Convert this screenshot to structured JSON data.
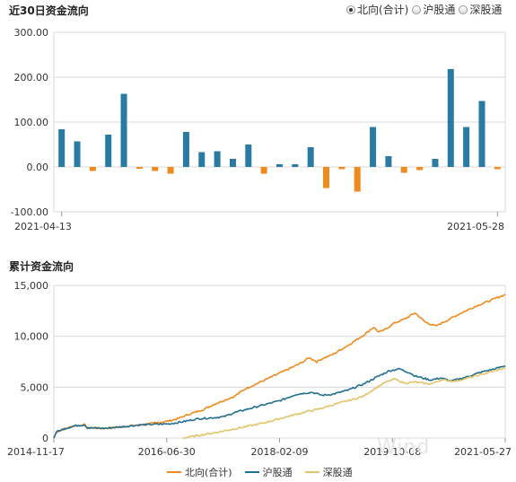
{
  "header": {
    "title1": "近30日资金流向",
    "title2": "累计资金流向",
    "radios": [
      {
        "label": "北向(合计)",
        "checked": true
      },
      {
        "label": "沪股通",
        "checked": false
      },
      {
        "label": "深股通",
        "checked": false
      }
    ]
  },
  "watermark": "Wind",
  "colors": {
    "positive": "#2a7ba1",
    "negative": "#ee8a1e",
    "north": "#ee8a1e",
    "sh": "#21708f",
    "sz": "#e3c46a",
    "grid": "#d9d9d9"
  },
  "chart_data": [
    {
      "type": "bar",
      "title": "近30日资金流向",
      "x_start_label": "2021-04-13",
      "x_end_label": "2021-05-28",
      "ylim": [
        -100,
        300
      ],
      "yticks": [
        "300.00",
        "200.00",
        "100.00",
        "0.00",
        "-100.00"
      ],
      "ytick_values": [
        300,
        200,
        100,
        0,
        -100
      ],
      "values": [
        84,
        57,
        -9,
        72,
        163,
        -4,
        -9,
        -15,
        78,
        33,
        35,
        18,
        50,
        -15,
        6,
        6,
        44,
        -47,
        -5,
        -55,
        89,
        24,
        -13,
        -7,
        18,
        218,
        89,
        147,
        -5
      ]
    },
    {
      "type": "line",
      "title": "累计资金流向",
      "ylim": [
        0,
        15000
      ],
      "yticks": [
        "15,000",
        "10,000",
        "5,000",
        "0"
      ],
      "ytick_values": [
        15000,
        10000,
        5000,
        0
      ],
      "xticks": [
        "2014-11-17",
        "2016-06-30",
        "2018-02-09",
        "2019-10-08",
        "2021-05-27"
      ],
      "legend": [
        "北向(合计)",
        "沪股通",
        "深股通"
      ],
      "series": [
        {
          "name": "北向(合计)",
          "key": "north",
          "points": [
            [
              0,
              0
            ],
            [
              1,
              600
            ],
            [
              4,
              900
            ],
            [
              8,
              1200
            ],
            [
              12,
              1300
            ],
            [
              13,
              1000
            ],
            [
              20,
              950
            ],
            [
              28,
              1150
            ],
            [
              34,
              1300
            ],
            [
              40,
              1500
            ],
            [
              45,
              1700
            ],
            [
              48,
              1900
            ],
            [
              52,
              2300
            ],
            [
              58,
              2800
            ],
            [
              62,
              3300
            ],
            [
              66,
              3700
            ],
            [
              70,
              4100
            ],
            [
              74,
              4800
            ],
            [
              80,
              5500
            ],
            [
              86,
              6200
            ],
            [
              92,
              6900
            ],
            [
              96,
              7400
            ],
            [
              99,
              7900
            ],
            [
              102,
              7500
            ],
            [
              104,
              7800
            ],
            [
              108,
              8200
            ],
            [
              114,
              9100
            ],
            [
              120,
              10100
            ],
            [
              122,
              10500
            ],
            [
              124,
              10900
            ],
            [
              126,
              10400
            ],
            [
              128,
              10600
            ],
            [
              132,
              11300
            ],
            [
              136,
              11700
            ],
            [
              140,
              12300
            ],
            [
              144,
              11400
            ],
            [
              148,
              11000
            ],
            [
              152,
              11500
            ],
            [
              158,
              12300
            ],
            [
              164,
              13000
            ],
            [
              170,
              13600
            ],
            [
              175,
              14100
            ]
          ]
        },
        {
          "name": "沪股通",
          "key": "sh",
          "points": [
            [
              0,
              0
            ],
            [
              1,
              600
            ],
            [
              4,
              900
            ],
            [
              8,
              1200
            ],
            [
              12,
              1300
            ],
            [
              13,
              1000
            ],
            [
              20,
              950
            ],
            [
              28,
              1150
            ],
            [
              34,
              1300
            ],
            [
              40,
              1350
            ],
            [
              45,
              1400
            ],
            [
              50,
              1600
            ],
            [
              56,
              1900
            ],
            [
              62,
              2000
            ],
            [
              66,
              2100
            ],
            [
              70,
              2500
            ],
            [
              76,
              2900
            ],
            [
              82,
              3300
            ],
            [
              88,
              3700
            ],
            [
              94,
              4300
            ],
            [
              100,
              4500
            ],
            [
              104,
              4200
            ],
            [
              108,
              4300
            ],
            [
              114,
              4700
            ],
            [
              120,
              5300
            ],
            [
              126,
              6100
            ],
            [
              130,
              6600
            ],
            [
              134,
              6800
            ],
            [
              138,
              6400
            ],
            [
              140,
              6100
            ],
            [
              146,
              5700
            ],
            [
              150,
              5900
            ],
            [
              154,
              5600
            ],
            [
              160,
              6000
            ],
            [
              166,
              6500
            ],
            [
              171,
              6800
            ],
            [
              175,
              7100
            ]
          ]
        },
        {
          "name": "深股通",
          "key": "sz",
          "points": [
            [
              50,
              0
            ],
            [
              56,
              250
            ],
            [
              62,
              500
            ],
            [
              68,
              800
            ],
            [
              74,
              1100
            ],
            [
              80,
              1400
            ],
            [
              86,
              1800
            ],
            [
              92,
              2200
            ],
            [
              98,
              2600
            ],
            [
              102,
              2800
            ],
            [
              106,
              3100
            ],
            [
              110,
              3400
            ],
            [
              116,
              3800
            ],
            [
              120,
              4100
            ],
            [
              124,
              4800
            ],
            [
              128,
              5400
            ],
            [
              132,
              5800
            ],
            [
              136,
              5400
            ],
            [
              140,
              5500
            ],
            [
              146,
              5300
            ],
            [
              150,
              5700
            ],
            [
              156,
              5600
            ],
            [
              162,
              6000
            ],
            [
              168,
              6400
            ],
            [
              175,
              6900
            ]
          ]
        }
      ]
    }
  ]
}
